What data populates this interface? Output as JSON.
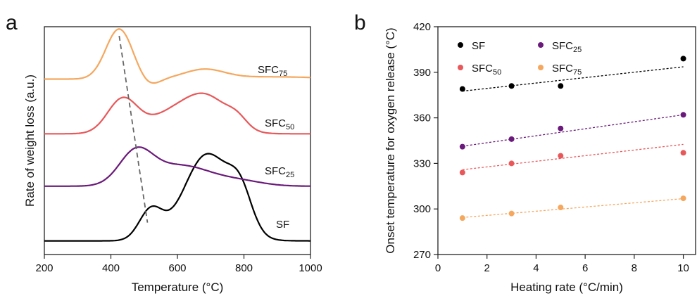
{
  "chart_data": [
    {
      "panel_label": "a",
      "type": "line",
      "xlabel": "Temperature (°C)",
      "ylabel": "Rate of weight loss (a.u.)",
      "xlim": [
        200,
        1000
      ],
      "x_ticks": [
        200,
        400,
        600,
        800,
        1000
      ],
      "y_ticks_shown": false,
      "grid": false,
      "series": [
        {
          "label_main": "SF",
          "label_sub": "",
          "color": "#000000",
          "baseline": 0.06,
          "components": [
            [
              520,
              35,
              0.13
            ],
            [
              690,
              70,
              0.38
            ],
            [
              790,
              35,
              0.15
            ]
          ]
        },
        {
          "label_main": "SFC",
          "label_sub": "25",
          "color": "#6a1a7a",
          "baseline": 0.3,
          "components": [
            [
              475,
              50,
              0.14
            ],
            [
              610,
              90,
              0.09
            ],
            [
              790,
              70,
              0.02
            ]
          ]
        },
        {
          "label_main": "SFC",
          "label_sub": "50",
          "color": "#e8585a",
          "baseline": 0.53,
          "components": [
            [
              435,
              45,
              0.15
            ],
            [
              580,
              70,
              0.08
            ],
            [
              690,
              65,
              0.15
            ],
            [
              780,
              30,
              0.04
            ]
          ]
        },
        {
          "label_main": "SFC",
          "label_sub": "75",
          "color": "#f5a75e",
          "baseline": 0.77,
          "components": [
            [
              425,
              40,
              0.22
            ],
            [
              515,
              30,
              -0.03
            ],
            [
              680,
              60,
              0.04
            ],
            [
              880,
              150,
              0.01
            ]
          ]
        }
      ],
      "annotation_dashed_line": {
        "x": [
          425,
          510
        ],
        "y": [
          0.96,
          0.14
        ],
        "color": "#666666"
      }
    },
    {
      "panel_label": "b",
      "type": "scatter",
      "xlabel": "Heating rate (°C/min)",
      "ylabel": "Onset temperature for oxygen release (°C)",
      "xlim": [
        0,
        10.5
      ],
      "ylim": [
        270,
        420
      ],
      "x_ticks": [
        0,
        2,
        4,
        6,
        8,
        10
      ],
      "y_ticks": [
        270,
        300,
        330,
        360,
        390,
        420
      ],
      "grid": false,
      "legend_placement": "top-left",
      "series": [
        {
          "label_main": "SF",
          "label_sub": "",
          "color": "#000000",
          "x": [
            1,
            3,
            5,
            10
          ],
          "y": [
            379,
            381,
            381,
            399
          ],
          "fit": [
            375.8,
            1.78
          ]
        },
        {
          "label_main": "SFC",
          "label_sub": "25",
          "color": "#6a1a7a",
          "x": [
            1,
            3,
            5,
            10
          ],
          "y": [
            341,
            346,
            353,
            362
          ],
          "fit": [
            339.0,
            2.3
          ]
        },
        {
          "label_main": "SFC",
          "label_sub": "50",
          "color": "#e8585a",
          "x": [
            1,
            3,
            5,
            10
          ],
          "y": [
            324,
            330,
            335,
            337
          ],
          "fit": [
            324.0,
            1.85
          ]
        },
        {
          "label_main": "SFC",
          "label_sub": "75",
          "color": "#f5a75e",
          "x": [
            1,
            3,
            5,
            10
          ],
          "y": [
            294,
            297,
            301,
            307
          ],
          "fit": [
            293.0,
            1.38
          ]
        }
      ]
    }
  ]
}
